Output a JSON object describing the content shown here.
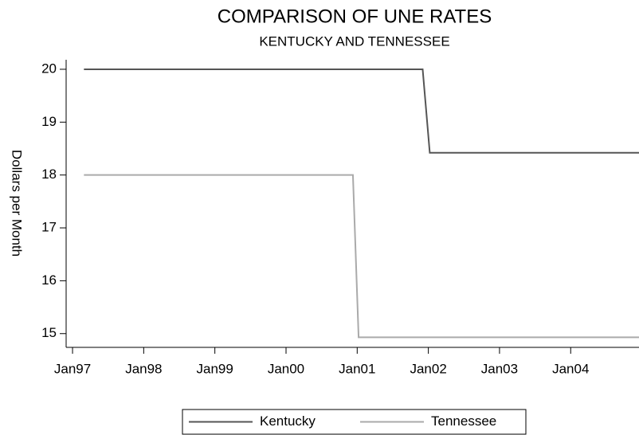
{
  "chart_data": {
    "type": "line",
    "title": "COMPARISON OF UNE RATES",
    "subtitle": "KENTUCKY AND TENNESSEE",
    "y_label": "Dollars per Month",
    "series": [
      {
        "name": "Kentucky",
        "color": "#555555",
        "x": [
          1997.16,
          2001.92,
          2002.02,
          2004.96
        ],
        "values": [
          20,
          20,
          18.42,
          18.42
        ]
      },
      {
        "name": "Tennessee",
        "color": "#aaaaaa",
        "x": [
          1997.16,
          2000.94,
          2001.02,
          2004.96
        ],
        "values": [
          18,
          18,
          14.93,
          14.93
        ]
      }
    ],
    "xlim": [
      1996.91,
      2004.96
    ],
    "xticks": [
      {
        "value": 1997,
        "label": "Jan97"
      },
      {
        "value": 1998,
        "label": "Jan98"
      },
      {
        "value": 1999,
        "label": "Jan99"
      },
      {
        "value": 2000,
        "label": "Jan00"
      },
      {
        "value": 2001,
        "label": "Jan01"
      },
      {
        "value": 2002,
        "label": "Jan02"
      },
      {
        "value": 2003,
        "label": "Jan03"
      },
      {
        "value": 2004,
        "label": "Jan04"
      }
    ],
    "ylim": [
      14.74,
      20.18
    ],
    "yticks": [
      15,
      16,
      17,
      18,
      19,
      20
    ],
    "legend": "bottom"
  }
}
